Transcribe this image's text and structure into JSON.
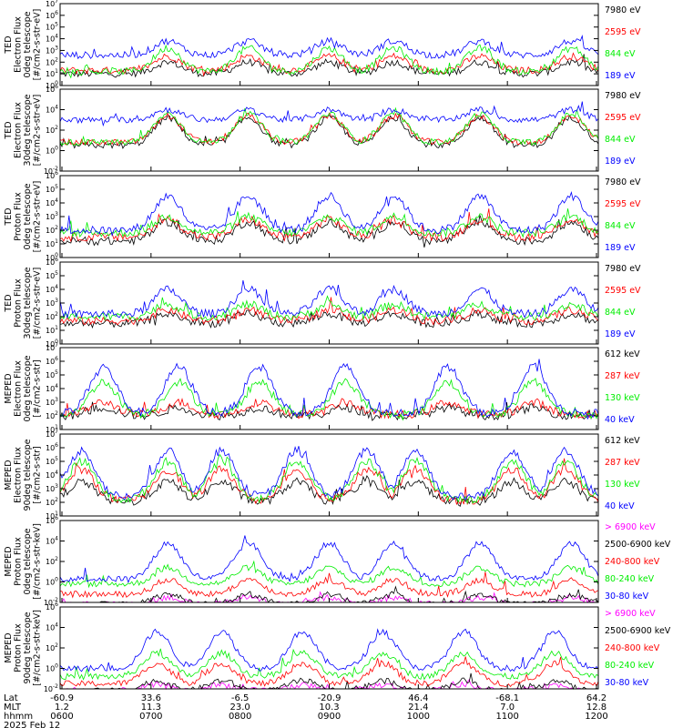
{
  "chart_data": [
    {
      "type": "line",
      "ylabel_lines": [
        "TED",
        "Electron Flux",
        "0deg telescope",
        "[#/cm2-s-str-eV]"
      ],
      "ylog": true,
      "ylim_exp": [
        0,
        7
      ],
      "tick_labels": [
        "10^0",
        "10^1",
        "10^2",
        "10^3",
        "10^4",
        "10^5",
        "10^6",
        "10^7"
      ],
      "series": [
        {
          "name": "7980 eV",
          "color": "#000000",
          "base": 1.0,
          "peak": 2.0
        },
        {
          "name": "2595 eV",
          "color": "#ff0000",
          "base": 1.3,
          "peak": 2.5
        },
        {
          "name": "844 eV",
          "color": "#00ee00",
          "base": 1.2,
          "peak": 3.2
        },
        {
          "name": "189 eV",
          "color": "#0000ff",
          "base": 2.6,
          "peak": 3.8
        }
      ],
      "peaks": [
        0.2,
        0.35,
        0.5,
        0.62,
        0.78,
        0.95
      ]
    },
    {
      "type": "line",
      "ylabel_lines": [
        "TED",
        "Electron Flux",
        "30deg telescope",
        "[#/cm2-s-str-eV]"
      ],
      "ylog": true,
      "ylim_exp": [
        -2,
        6
      ],
      "tick_labels": [
        "10^-2",
        "10^0",
        "10^2",
        "10^4",
        "10^6"
      ],
      "tick_exps": [
        -2,
        0,
        2,
        4,
        6
      ],
      "series": [
        {
          "name": "7980 eV",
          "color": "#000000",
          "base": 0.5,
          "peak": 3.2
        },
        {
          "name": "2595 eV",
          "color": "#ff0000",
          "base": 0.8,
          "peak": 3.4
        },
        {
          "name": "844 eV",
          "color": "#00ee00",
          "base": 0.8,
          "peak": 3.6
        },
        {
          "name": "189 eV",
          "color": "#0000ff",
          "base": 3.0,
          "peak": 4.0
        }
      ],
      "peaks": [
        0.2,
        0.35,
        0.5,
        0.62,
        0.78,
        0.95
      ]
    },
    {
      "type": "line",
      "ylabel_lines": [
        "TED",
        "Proton Flux",
        "0deg telescope",
        "[#/cm2-s-str-eV]"
      ],
      "ylog": true,
      "ylim_exp": [
        0,
        6
      ],
      "tick_labels": [
        "10^0",
        "10^1",
        "10^2",
        "10^3",
        "10^4",
        "10^5",
        "10^6"
      ],
      "series": [
        {
          "name": "7980 eV",
          "color": "#000000",
          "base": 1.2,
          "peak": 2.6
        },
        {
          "name": "2595 eV",
          "color": "#ff0000",
          "base": 1.5,
          "peak": 2.8
        },
        {
          "name": "844 eV",
          "color": "#00ee00",
          "base": 1.8,
          "peak": 3.0
        },
        {
          "name": "189 eV",
          "color": "#0000ff",
          "base": 2.0,
          "peak": 4.5
        }
      ],
      "peaks": [
        0.2,
        0.35,
        0.5,
        0.62,
        0.78,
        0.95
      ]
    },
    {
      "type": "line",
      "ylabel_lines": [
        "TED",
        "Proton Flux",
        "30deg telescope",
        "[#/cm2-s-str-eV]"
      ],
      "ylog": true,
      "ylim_exp": [
        0,
        6
      ],
      "tick_labels": [
        "10^0",
        "10^1",
        "10^2",
        "10^3",
        "10^4",
        "10^5",
        "10^6"
      ],
      "series": [
        {
          "name": "7980 eV",
          "color": "#000000",
          "base": 1.5,
          "peak": 2.2
        },
        {
          "name": "2595 eV",
          "color": "#ff0000",
          "base": 1.7,
          "peak": 2.5
        },
        {
          "name": "844 eV",
          "color": "#00ee00",
          "base": 2.0,
          "peak": 2.9
        },
        {
          "name": "189 eV",
          "color": "#0000ff",
          "base": 2.2,
          "peak": 4.0
        }
      ],
      "peaks": [
        0.2,
        0.35,
        0.5,
        0.62,
        0.78,
        0.95
      ]
    },
    {
      "type": "line",
      "ylabel_lines": [
        "MEPED",
        "Electron Flux",
        "0deg telescope",
        "[#/cm2-s-str]"
      ],
      "ylog": true,
      "ylim_exp": [
        1,
        7
      ],
      "tick_labels": [
        "10^1",
        "10^2",
        "10^3",
        "10^4",
        "10^5",
        "10^6",
        "10^7"
      ],
      "series": [
        {
          "name": "612 keV",
          "color": "#000000",
          "base": 2.0,
          "peak": 2.6
        },
        {
          "name": "287 keV",
          "color": "#ff0000",
          "base": 2.1,
          "peak": 3.0
        },
        {
          "name": "130 keV",
          "color": "#00ee00",
          "base": 2.1,
          "peak": 4.5
        },
        {
          "name": "40 keV",
          "color": "#0000ff",
          "base": 2.2,
          "peak": 5.6
        }
      ],
      "peaks": [
        0.08,
        0.22,
        0.37,
        0.53,
        0.72,
        0.88
      ]
    },
    {
      "type": "line",
      "ylabel_lines": [
        "MEPED",
        "Electron Flux",
        "90deg telescope",
        "[#/cm2-s-str]"
      ],
      "ylog": true,
      "ylim_exp": [
        1,
        7
      ],
      "tick_labels": [
        "10^1",
        "10^2",
        "10^3",
        "10^4",
        "10^5",
        "10^6",
        "10^7"
      ],
      "series": [
        {
          "name": "612 keV",
          "color": "#000000",
          "base": 2.0,
          "peak": 3.5
        },
        {
          "name": "287 keV",
          "color": "#ff0000",
          "base": 2.1,
          "peak": 4.4
        },
        {
          "name": "130 keV",
          "color": "#00ee00",
          "base": 2.2,
          "peak": 5.0
        },
        {
          "name": "40 keV",
          "color": "#0000ff",
          "base": 2.4,
          "peak": 5.8
        }
      ],
      "peaks": [
        0.04,
        0.2,
        0.3,
        0.44,
        0.57,
        0.66,
        0.84,
        0.94
      ]
    },
    {
      "type": "line",
      "ylabel_lines": [
        "MEPED",
        "Proton Flux",
        "0deg telescope",
        "[#/cm2-s-str-keV]"
      ],
      "ylog": true,
      "ylim_exp": [
        -2,
        6
      ],
      "tick_labels": [
        "10^-2",
        "10^0",
        "10^2",
        "10^4",
        "10^6"
      ],
      "tick_exps": [
        -2,
        0,
        2,
        4,
        6
      ],
      "series": [
        {
          "name": "> 6900 keV",
          "color": "#ff00ff",
          "base": -2.2,
          "peak": -1.5
        },
        {
          "name": "2500-6900 keV",
          "color": "#000000",
          "base": -2.2,
          "peak": -1.2
        },
        {
          "name": "240-800 keV",
          "color": "#ff0000",
          "base": -1.2,
          "peak": 0.2
        },
        {
          "name": "80-240 keV",
          "color": "#00ee00",
          "base": -0.2,
          "peak": 1.4
        },
        {
          "name": "30-80 keV",
          "color": "#0000ff",
          "base": 0.3,
          "peak": 3.8
        }
      ],
      "peaks": [
        0.2,
        0.35,
        0.5,
        0.62,
        0.78,
        0.95
      ]
    },
    {
      "type": "line",
      "ylabel_lines": [
        "MEPED",
        "Proton Flux",
        "90deg telescope",
        "[#/cm2-s-str-keV]"
      ],
      "ylog": true,
      "ylim_exp": [
        -2,
        6
      ],
      "tick_labels": [
        "10^-2",
        "10^0",
        "10^2",
        "10^4",
        "10^6"
      ],
      "tick_exps": [
        -2,
        0,
        2,
        4,
        6
      ],
      "series": [
        {
          "name": "> 6900 keV",
          "color": "#ff00ff",
          "base": -2.2,
          "peak": -1.6
        },
        {
          "name": "2500-6900 keV",
          "color": "#000000",
          "base": -2.2,
          "peak": -1.2
        },
        {
          "name": "240-800 keV",
          "color": "#ff0000",
          "base": -1.5,
          "peak": 0.5
        },
        {
          "name": "80-240 keV",
          "color": "#00ee00",
          "base": -0.8,
          "peak": 1.5
        },
        {
          "name": "30-80 keV",
          "color": "#0000ff",
          "base": 0.0,
          "peak": 3.6
        }
      ],
      "peaks": [
        0.18,
        0.3,
        0.45,
        0.6,
        0.75,
        0.92
      ]
    }
  ],
  "xaxis": {
    "row_labels": [
      "Lat",
      "MLT",
      "hhmm"
    ],
    "ticks": [
      {
        "lat": "-60.9",
        "mlt": "1.2",
        "hhmm": "0600"
      },
      {
        "lat": "33.6",
        "mlt": "11.3",
        "hhmm": "0700"
      },
      {
        "lat": "-6.5",
        "mlt": "23.0",
        "hhmm": "0800"
      },
      {
        "lat": "-20.9",
        "mlt": "10.3",
        "hhmm": "0900"
      },
      {
        "lat": "46.4",
        "mlt": "21.4",
        "hhmm": "1000"
      },
      {
        "lat": "-68.1",
        "mlt": "7.0",
        "hhmm": "1100"
      },
      {
        "lat": "64.2",
        "mlt": "12.8",
        "hhmm": "1200"
      }
    ],
    "date": "2025 Feb 12"
  }
}
